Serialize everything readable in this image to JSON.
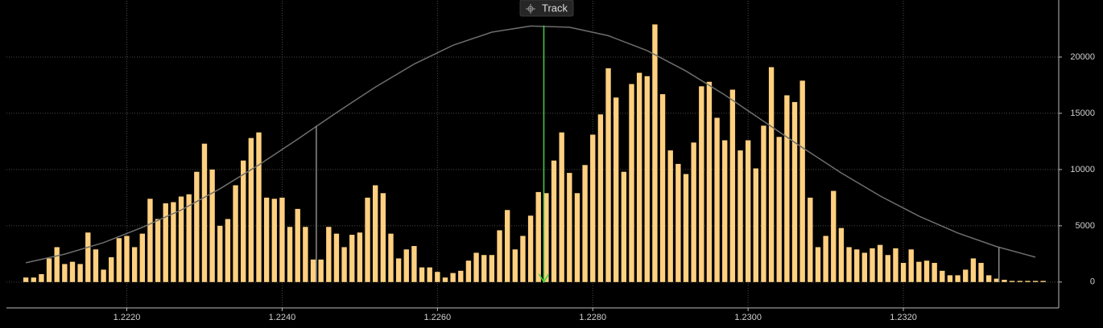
{
  "toolbar": {
    "button": "Track"
  },
  "chart_data": {
    "type": "bar",
    "x": [
      1.2207,
      1.2208,
      1.2209,
      1.221,
      1.2211,
      1.2212,
      1.2213,
      1.2214,
      1.2215,
      1.2216,
      1.2217,
      1.2218,
      1.2219,
      1.222,
      1.2221,
      1.2222,
      1.2223,
      1.2224,
      1.2225,
      1.2226,
      1.2227,
      1.2228,
      1.2229,
      1.223,
      1.2231,
      1.2232,
      1.2233,
      1.2234,
      1.2235,
      1.2236,
      1.2237,
      1.2238,
      1.2239,
      1.224,
      1.2241,
      1.2242,
      1.2243,
      1.2244,
      1.2245,
      1.2246,
      1.2247,
      1.2248,
      1.2249,
      1.225,
      1.2251,
      1.2252,
      1.2253,
      1.2254,
      1.2255,
      1.2256,
      1.2257,
      1.2258,
      1.2259,
      1.226,
      1.2261,
      1.2262,
      1.2263,
      1.2264,
      1.2265,
      1.2266,
      1.2267,
      1.2268,
      1.2269,
      1.227,
      1.2271,
      1.2272,
      1.2273,
      1.2274,
      1.2275,
      1.2276,
      1.2277,
      1.2278,
      1.2279,
      1.228,
      1.2281,
      1.2282,
      1.2283,
      1.2284,
      1.2285,
      1.2286,
      1.2287,
      1.2288,
      1.2289,
      1.229,
      1.2291,
      1.2292,
      1.2293,
      1.2294,
      1.2295,
      1.2296,
      1.2297,
      1.2298,
      1.2299,
      1.23,
      1.2301,
      1.2302,
      1.2303,
      1.2304,
      1.2305,
      1.2306,
      1.2307,
      1.2308,
      1.2309,
      1.231,
      1.2311,
      1.2312,
      1.2313,
      1.2314,
      1.2315,
      1.2316,
      1.2317,
      1.2318,
      1.2319,
      1.232,
      1.2321,
      1.2322,
      1.2323,
      1.2324,
      1.2325,
      1.2326,
      1.2327,
      1.2328,
      1.2329,
      1.233,
      1.2331,
      1.2332,
      1.2333,
      1.2334,
      1.2335,
      1.2336,
      1.2337,
      1.2338
    ],
    "values": [
      400,
      400,
      700,
      2100,
      3100,
      1600,
      1800,
      1600,
      4400,
      2900,
      1100,
      2200,
      3900,
      4100,
      3100,
      4300,
      7400,
      5600,
      7000,
      7100,
      7600,
      7800,
      9800,
      12300,
      10000,
      5000,
      5600,
      8600,
      10800,
      12800,
      13300,
      7500,
      7400,
      7500,
      4900,
      6500,
      4900,
      2000,
      2000,
      4900,
      4300,
      3100,
      4200,
      4400,
      7500,
      8600,
      7900,
      4300,
      2100,
      2900,
      3200,
      1300,
      1300,
      900,
      400,
      800,
      1000,
      1900,
      2600,
      2400,
      2400,
      4600,
      6400,
      2900,
      4100,
      5900,
      8000,
      7900,
      10800,
      13300,
      9700,
      7900,
      10400,
      13100,
      14900,
      19000,
      16400,
      9800,
      17600,
      18600,
      18300,
      22900,
      16700,
      11700,
      10500,
      9600,
      12400,
      17400,
      17800,
      14600,
      12600,
      17100,
      11700,
      12600,
      10100,
      13900,
      19100,
      12900,
      16600,
      16000,
      17900,
      7500,
      3100,
      4100,
      8100,
      4800,
      3100,
      2900,
      2600,
      3000,
      3300,
      2400,
      3000,
      1700,
      2900,
      1800,
      1900,
      1700,
      1000,
      600,
      600,
      1100,
      2100,
      1700,
      600,
      300,
      200,
      100,
      100,
      100,
      100,
      100
    ],
    "color": "#ffd080",
    "fit_curve": {
      "color": "#6e6e6e",
      "x": [
        1.2207,
        1.2212,
        1.2217,
        1.2222,
        1.2227,
        1.2232,
        1.2237,
        1.2242,
        1.2247,
        1.2252,
        1.2257,
        1.2262,
        1.2267,
        1.2272,
        1.2277,
        1.2282,
        1.2287,
        1.2292,
        1.2297,
        1.2302,
        1.2307,
        1.2312,
        1.2317,
        1.2322,
        1.2327,
        1.2332,
        1.2337
      ],
      "values": [
        1710,
        2480,
        3500,
        4860,
        6400,
        8290,
        10410,
        12700,
        15060,
        17330,
        19380,
        21050,
        22210,
        22760,
        22650,
        21900,
        20570,
        18760,
        16630,
        14290,
        11950,
        9700,
        7650,
        5860,
        4360,
        3150,
        2210
      ]
    },
    "markers": [
      {
        "x": 1.22444,
        "value": 13900,
        "color": "#8a8a8a"
      },
      {
        "x": 1.22737,
        "value": 22800,
        "color": "#44d040"
      },
      {
        "x": 1.23323,
        "value": 3100,
        "color": "#8a8a8a"
      }
    ],
    "xlim": [
      1.22045,
      1.234
    ],
    "ylim": [
      -2300,
      25000
    ],
    "xticks": [
      {
        "value": 1.222,
        "label": "1.2220"
      },
      {
        "value": 1.224,
        "label": "1.2240"
      },
      {
        "value": 1.226,
        "label": "1.2260"
      },
      {
        "value": 1.228,
        "label": "1.2280"
      },
      {
        "value": 1.23,
        "label": "1.2300"
      },
      {
        "value": 1.232,
        "label": "1.2320"
      }
    ],
    "yticks": [
      0,
      5000,
      10000,
      15000,
      20000
    ],
    "grid": true
  }
}
